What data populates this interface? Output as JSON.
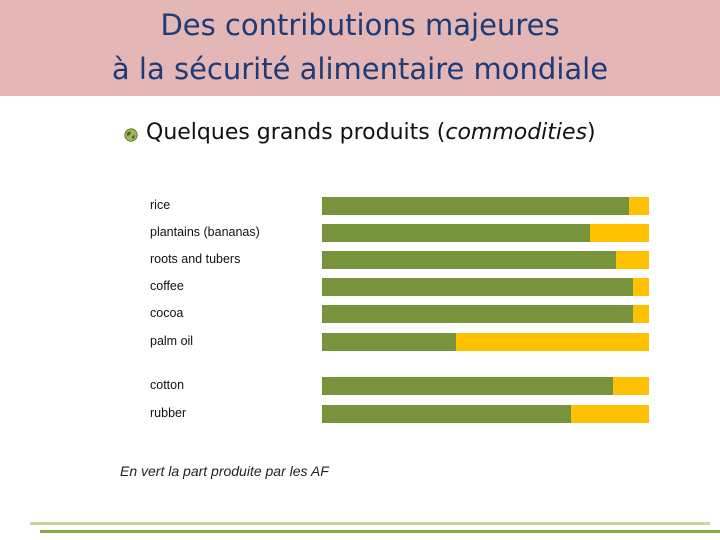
{
  "header": {
    "title_line1": "Des contributions majeures",
    "title_line2": "à la sécurité alimentaire mondiale"
  },
  "bullet": {
    "text_prefix": "Quelques grands produits (",
    "text_italic": "commodities",
    "text_suffix": ")"
  },
  "caption": "En vert la part produite par les AF",
  "colors": {
    "green": "#77933c",
    "yellow": "#ffc000",
    "title_band": "#e4b6b6",
    "title_text": "#1f3b75"
  },
  "chart_data": {
    "type": "bar",
    "orientation": "horizontal",
    "stacked": true,
    "categories": [
      "rice",
      "plantains (bananas)",
      "roots and tubers",
      "coffee",
      "cocoa",
      "palm oil",
      "cotton",
      "rubber"
    ],
    "series": [
      {
        "values": [
          94,
          82,
          90,
          95,
          95,
          41,
          89,
          76
        ],
        "color": "#77933c"
      },
      {
        "values": [
          6,
          18,
          10,
          5,
          5,
          59,
          11,
          24
        ],
        "color": "#ffc000"
      }
    ],
    "xlim": [
      0,
      100
    ],
    "grid": false,
    "legend": "none"
  }
}
